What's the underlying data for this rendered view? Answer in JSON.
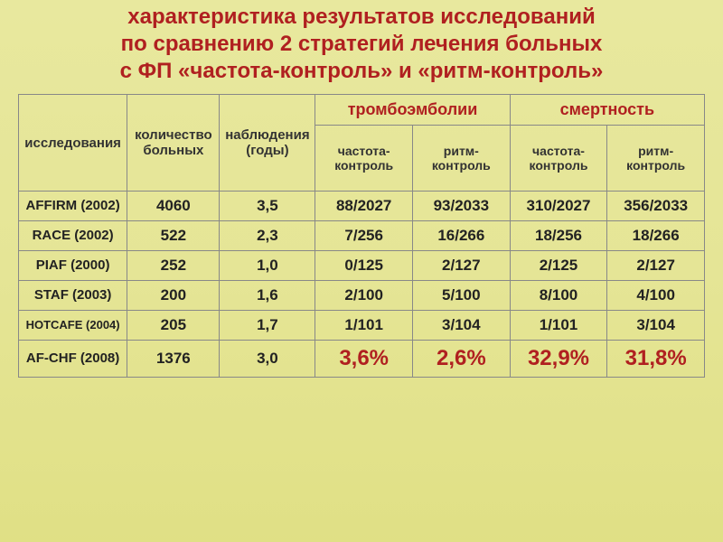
{
  "title_line1": "характеристика результатов исследований",
  "title_line2": "по сравнению 2 стратегий лечения больных",
  "title_line3": "с ФП «частота-контроль» и «ритм-контроль»",
  "headers": {
    "study": "исследования",
    "patients": "количество больных",
    "followup": "наблюдения (годы)",
    "thrombo": "тромбоэмболии",
    "mortality": "смертность",
    "rate_ctrl": "частота-контроль",
    "rhythm_ctrl": "ритм-контроль"
  },
  "rows": [
    {
      "study": "AFFIRM (2002)",
      "n": "4060",
      "y": "3,5",
      "t1": "88/2027",
      "t2": "93/2033",
      "m1": "310/2027",
      "m2": "356/2033",
      "small": false
    },
    {
      "study": "RACE (2002)",
      "n": "522",
      "y": "2,3",
      "t1": "7/256",
      "t2": "16/266",
      "m1": "18/256",
      "m2": "18/266",
      "small": false
    },
    {
      "study": "PIAF (2000)",
      "n": "252",
      "y": "1,0",
      "t1": "0/125",
      "t2": "2/127",
      "m1": "2/125",
      "m2": "2/127",
      "small": false
    },
    {
      "study": "STAF (2003)",
      "n": "200",
      "y": "1,6",
      "t1": "2/100",
      "t2": "5/100",
      "m1": "8/100",
      "m2": "4/100",
      "small": false
    },
    {
      "study": "HOTCAFE (2004)",
      "n": "205",
      "y": "1,7",
      "t1": "1/101",
      "t2": "3/104",
      "m1": "1/101",
      "m2": "3/104",
      "small": true
    },
    {
      "study": "AF-CHF (2008)",
      "n": "1376",
      "y": "3,0",
      "t1": "3,6%",
      "t2": "2,6%",
      "m1": "32,9%",
      "m2": "31,8%",
      "small": false,
      "highlight": true
    }
  ],
  "style": {
    "title_color": "#b02020",
    "cell_text_color": "#222222",
    "border_color": "#888888",
    "bg_gradient_top": "#e8e89e",
    "bg_gradient_bottom": "#e0e085",
    "title_fontsize": 24,
    "header_fontsize": 15,
    "cell_fontsize": 17,
    "highlight_fontsize": 24,
    "highlight_color": "#b02020"
  }
}
